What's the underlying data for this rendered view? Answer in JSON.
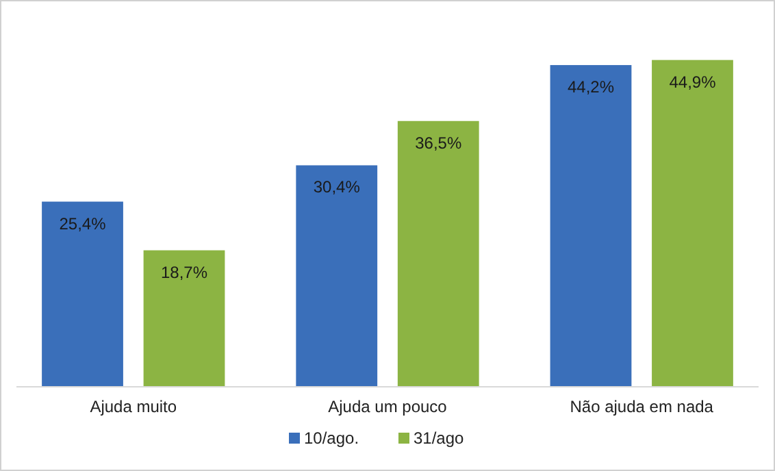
{
  "chart_data": {
    "type": "bar",
    "categories": [
      "Ajuda muito",
      "Ajuda um pouco",
      "Não ajuda em nada"
    ],
    "series": [
      {
        "name": "10/ago.",
        "color": "#3a6fba",
        "values": [
          25.4,
          30.4,
          44.2
        ],
        "value_labels": [
          "25,4%",
          "30,4%",
          "44,2%"
        ]
      },
      {
        "name": "31/ago",
        "color": "#8cb443",
        "values": [
          18.7,
          36.5,
          44.9
        ],
        "value_labels": [
          "18,7%",
          "36,5%",
          "44,9%"
        ]
      }
    ],
    "legend": "bottom",
    "tick_labels": "x",
    "grid": false
  }
}
